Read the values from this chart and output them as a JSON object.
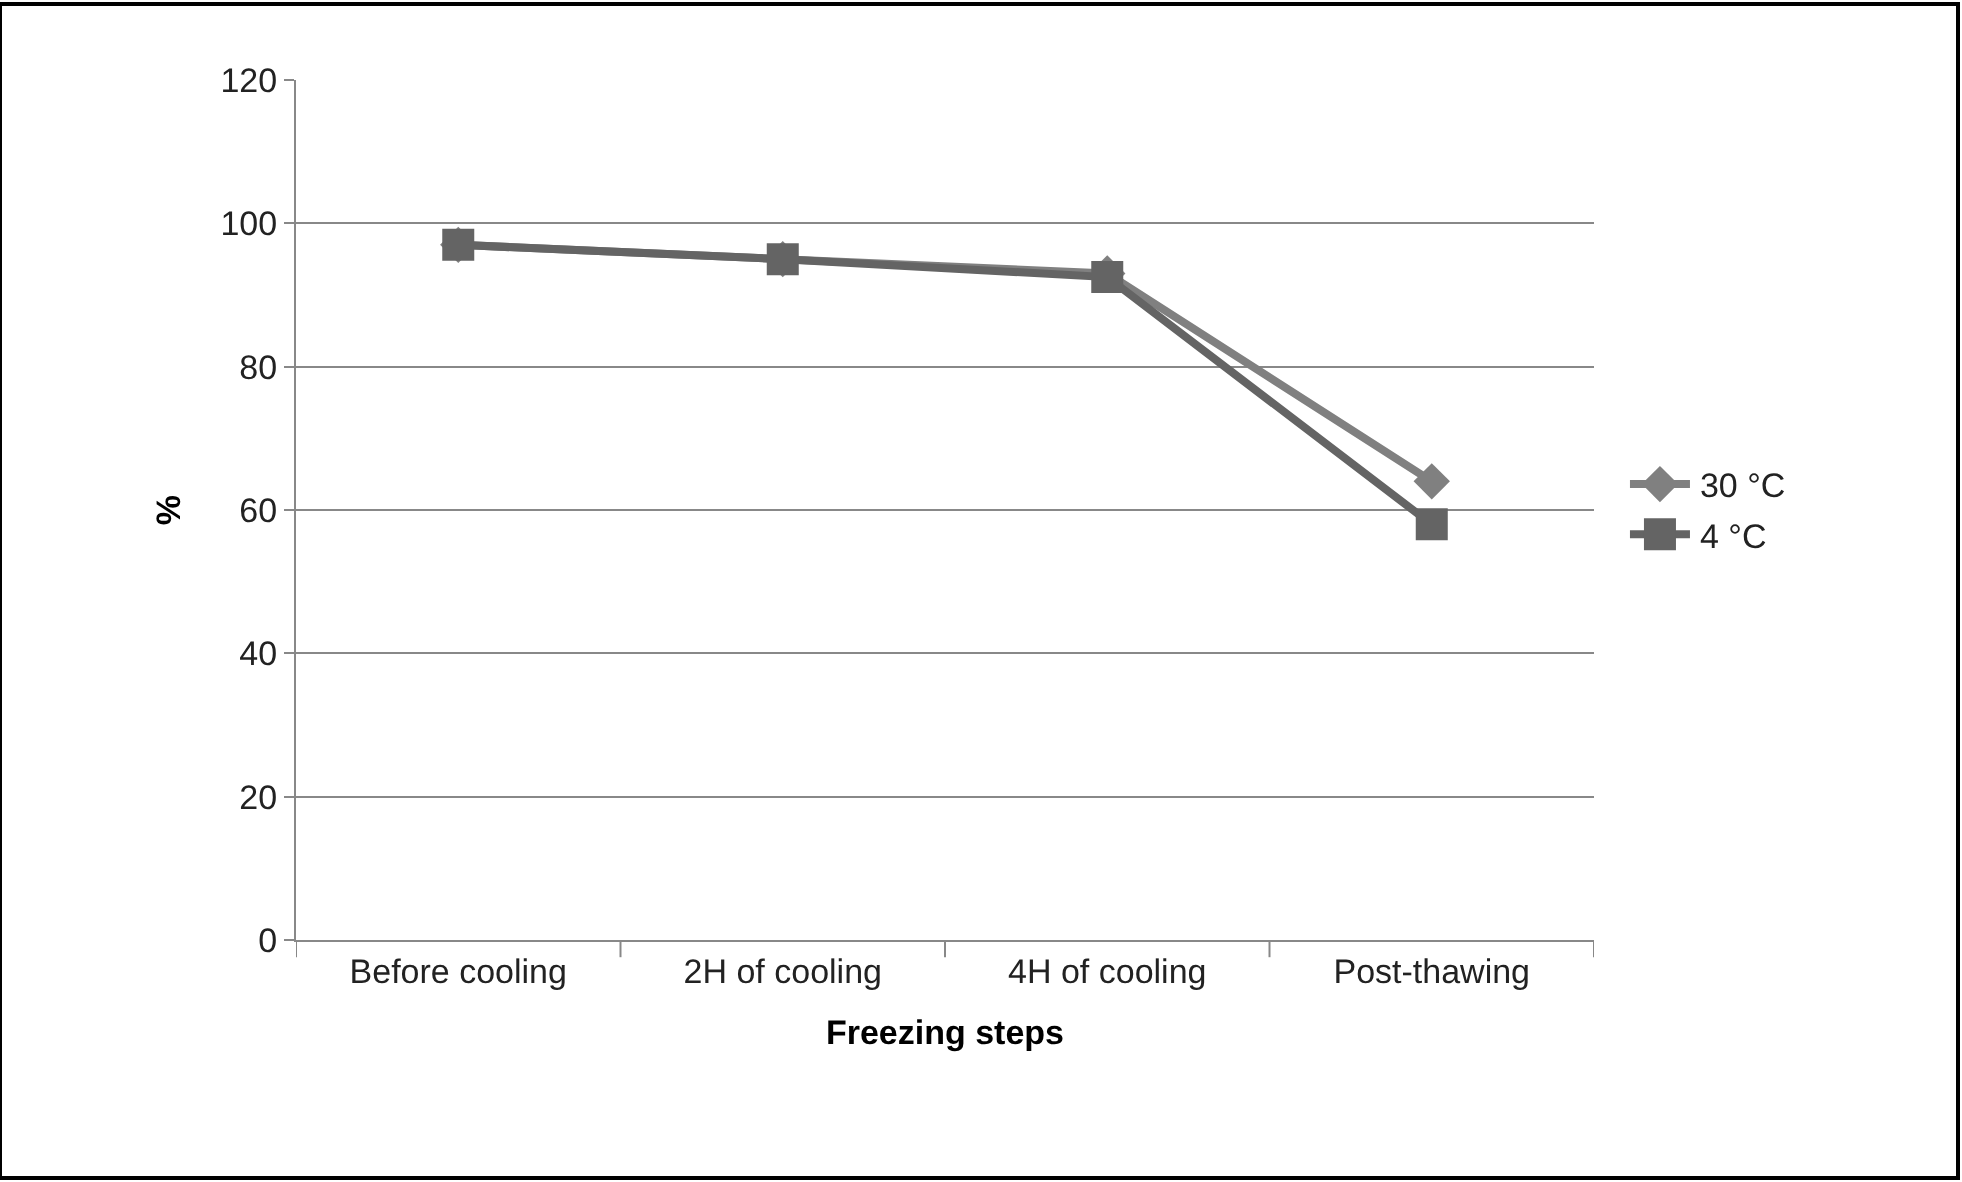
{
  "chart_data": {
    "type": "line",
    "xlabel": "Freezing steps",
    "ylabel": "%",
    "categories": [
      "Before cooling",
      "2H of cooling",
      "4H of cooling",
      "Post-thawing"
    ],
    "series": [
      {
        "name": "30 °C",
        "color": "#808080",
        "marker": "diamond",
        "values": [
          97,
          95,
          93,
          64
        ]
      },
      {
        "name": "4 °C",
        "color": "#646464",
        "marker": "square",
        "values": [
          97,
          95,
          92.5,
          58
        ]
      }
    ],
    "ylim": [
      0,
      120
    ],
    "yticks": [
      0,
      20,
      40,
      60,
      80,
      100,
      120
    ],
    "grid": "y",
    "legend": "right",
    "line_style": "solid"
  }
}
